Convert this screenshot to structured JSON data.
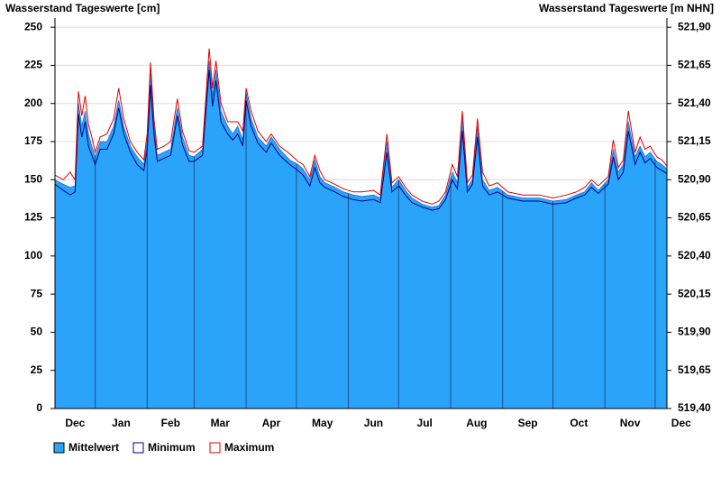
{
  "chart_data": {
    "type": "area",
    "title": "Wasserstand Tageswerte [cm]",
    "y2_title": "Wasserstand Tageswerte [m NHN]",
    "categories": [
      "Dec",
      "Jan",
      "Feb",
      "Mar",
      "Apr",
      "May",
      "Jun",
      "Jul",
      "Aug",
      "Sep",
      "Oct",
      "Nov",
      "Dec"
    ],
    "xticks": [
      0,
      31,
      62,
      90,
      121,
      151,
      182,
      212,
      243,
      274,
      304,
      335,
      365,
      396
    ],
    "xlim": [
      7,
      372
    ],
    "ylim": [
      0,
      256
    ],
    "yticks": [
      0,
      25,
      50,
      75,
      100,
      125,
      150,
      175,
      200,
      225,
      250
    ],
    "y2lim": [
      519.4,
      521.96
    ],
    "y2ticks": [
      {
        "value": 519.4,
        "label": "519,40"
      },
      {
        "value": 519.65,
        "label": "519,65"
      },
      {
        "value": 519.9,
        "label": "519,90"
      },
      {
        "value": 520.15,
        "label": "520,15"
      },
      {
        "value": 520.4,
        "label": "520,40"
      },
      {
        "value": 520.65,
        "label": "520,65"
      },
      {
        "value": 520.9,
        "label": "520,90"
      },
      {
        "value": 521.15,
        "label": "521,15"
      },
      {
        "value": 521.4,
        "label": "521,40"
      },
      {
        "value": 521.65,
        "label": "521,65"
      },
      {
        "value": 521.9,
        "label": "521,90"
      }
    ],
    "grid": true,
    "x": [
      7,
      12,
      16,
      19,
      21,
      23,
      25,
      27,
      29,
      31,
      34,
      38,
      42,
      45,
      48,
      52,
      56,
      60,
      62,
      64,
      66,
      68,
      72,
      76,
      80,
      83,
      87,
      90,
      95,
      99,
      101,
      103,
      106,
      110,
      113,
      116,
      119,
      121,
      124,
      128,
      133,
      136,
      141,
      147,
      152,
      155,
      159,
      162,
      165,
      168,
      174,
      179,
      185,
      190,
      197,
      201,
      205,
      208,
      212,
      216,
      220,
      226,
      232,
      236,
      240,
      244,
      247,
      250,
      253,
      256,
      259,
      262,
      266,
      271,
      277,
      286,
      296,
      304,
      312,
      318,
      323,
      327,
      331,
      337,
      340,
      343,
      346,
      349,
      353,
      356,
      359,
      362,
      366,
      369,
      372
    ],
    "series": [
      {
        "name": "Mittelwert",
        "style": "area",
        "color": "#2aa4fb",
        "values": [
          150,
          147,
          145,
          146,
          200,
          185,
          195,
          180,
          172,
          165,
          175,
          175,
          185,
          202,
          185,
          172,
          165,
          160,
          175,
          220,
          185,
          166,
          168,
          170,
          197,
          178,
          166,
          165,
          170,
          228,
          205,
          222,
          195,
          185,
          180,
          185,
          176,
          207,
          190,
          178,
          172,
          178,
          170,
          163,
          160,
          157,
          150,
          163,
          152,
          148,
          145,
          142,
          140,
          139,
          140,
          138,
          175,
          145,
          150,
          143,
          138,
          134,
          132,
          133,
          140,
          155,
          148,
          190,
          145,
          150,
          185,
          150,
          143,
          145,
          140,
          138,
          138,
          136,
          137,
          140,
          142,
          148,
          143,
          150,
          170,
          155,
          160,
          188,
          165,
          172,
          165,
          168,
          162,
          160,
          157
        ]
      },
      {
        "name": "Minimum",
        "style": "line",
        "color": "#00007a",
        "values": [
          147,
          143,
          140,
          142,
          193,
          178,
          188,
          172,
          166,
          160,
          170,
          170,
          180,
          197,
          180,
          168,
          160,
          156,
          170,
          212,
          180,
          162,
          164,
          166,
          192,
          173,
          162,
          162,
          166,
          222,
          198,
          215,
          188,
          180,
          176,
          180,
          172,
          202,
          185,
          174,
          168,
          174,
          166,
          160,
          156,
          153,
          146,
          158,
          148,
          145,
          142,
          139,
          137,
          136,
          137,
          135,
          168,
          142,
          146,
          140,
          135,
          132,
          130,
          131,
          137,
          150,
          144,
          182,
          142,
          147,
          178,
          146,
          140,
          142,
          138,
          136,
          136,
          134,
          135,
          138,
          140,
          145,
          141,
          147,
          165,
          150,
          155,
          182,
          160,
          168,
          161,
          164,
          158,
          156,
          154
        ]
      },
      {
        "name": "Maximum",
        "style": "line",
        "color": "#e00000",
        "values": [
          153,
          150,
          155,
          150,
          208,
          192,
          205,
          186,
          178,
          168,
          178,
          180,
          190,
          210,
          190,
          175,
          168,
          163,
          180,
          227,
          190,
          170,
          172,
          175,
          203,
          182,
          169,
          168,
          172,
          236,
          210,
          228,
          200,
          188,
          188,
          188,
          182,
          210,
          195,
          182,
          175,
          180,
          172,
          167,
          162,
          160,
          152,
          166,
          156,
          150,
          147,
          144,
          142,
          142,
          143,
          140,
          180,
          148,
          152,
          145,
          140,
          136,
          134,
          136,
          142,
          160,
          152,
          195,
          148,
          153,
          190,
          155,
          146,
          148,
          142,
          140,
          140,
          138,
          140,
          142,
          145,
          150,
          146,
          152,
          176,
          158,
          163,
          195,
          168,
          178,
          170,
          172,
          165,
          163,
          159
        ]
      }
    ],
    "legend": "bottom-left"
  }
}
